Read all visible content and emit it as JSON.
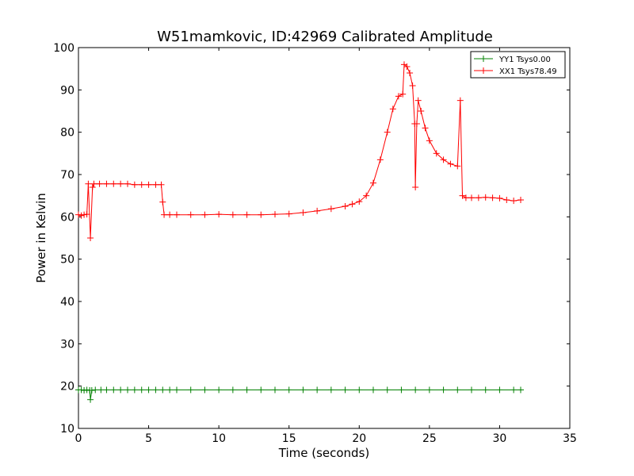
{
  "chart_data": {
    "type": "line",
    "title": "W51mamkovic, ID:42969 Calibrated Amplitude",
    "xlabel": "Time (seconds)",
    "ylabel": "Power in Kelvin",
    "xlim": [
      0,
      35
    ],
    "ylim": [
      10,
      100
    ],
    "xticks": [
      0,
      5,
      10,
      15,
      20,
      25,
      30,
      35
    ],
    "yticks": [
      10,
      20,
      30,
      40,
      50,
      60,
      70,
      80,
      90,
      100
    ],
    "grid": false,
    "legend_position": "top-right",
    "series": [
      {
        "name": "YY1 Tsys0.00",
        "color": "#008000",
        "marker": "+",
        "points": [
          [
            0.0,
            19.1
          ],
          [
            0.2,
            19.1
          ],
          [
            0.4,
            19.0
          ],
          [
            0.6,
            19.1
          ],
          [
            0.8,
            19.0
          ],
          [
            0.85,
            16.8
          ],
          [
            0.95,
            19.0
          ],
          [
            1.2,
            19.1
          ],
          [
            1.6,
            19.1
          ],
          [
            2.0,
            19.1
          ],
          [
            2.5,
            19.1
          ],
          [
            3.0,
            19.1
          ],
          [
            3.5,
            19.1
          ],
          [
            4.0,
            19.1
          ],
          [
            4.5,
            19.1
          ],
          [
            5.0,
            19.1
          ],
          [
            5.5,
            19.1
          ],
          [
            6.0,
            19.1
          ],
          [
            6.5,
            19.1
          ],
          [
            7.0,
            19.1
          ],
          [
            8.0,
            19.1
          ],
          [
            9.0,
            19.1
          ],
          [
            10.0,
            19.1
          ],
          [
            11.0,
            19.1
          ],
          [
            12.0,
            19.1
          ],
          [
            13.0,
            19.1
          ],
          [
            14.0,
            19.1
          ],
          [
            15.0,
            19.1
          ],
          [
            16.0,
            19.1
          ],
          [
            17.0,
            19.1
          ],
          [
            18.0,
            19.1
          ],
          [
            19.0,
            19.1
          ],
          [
            20.0,
            19.1
          ],
          [
            21.0,
            19.1
          ],
          [
            22.0,
            19.1
          ],
          [
            23.0,
            19.1
          ],
          [
            24.0,
            19.1
          ],
          [
            25.0,
            19.1
          ],
          [
            26.0,
            19.1
          ],
          [
            27.0,
            19.1
          ],
          [
            28.0,
            19.1
          ],
          [
            29.0,
            19.1
          ],
          [
            30.0,
            19.1
          ],
          [
            31.0,
            19.1
          ],
          [
            31.5,
            19.1
          ]
        ]
      },
      {
        "name": "XX1 Tsys78.49",
        "color": "#ff0000",
        "marker": "+",
        "points": [
          [
            0.0,
            60.5
          ],
          [
            0.2,
            60.3
          ],
          [
            0.4,
            60.5
          ],
          [
            0.6,
            60.6
          ],
          [
            0.7,
            67.8
          ],
          [
            0.85,
            55.0
          ],
          [
            1.0,
            67.0
          ],
          [
            1.1,
            67.8
          ],
          [
            1.5,
            67.8
          ],
          [
            2.0,
            67.8
          ],
          [
            2.5,
            67.8
          ],
          [
            3.0,
            67.8
          ],
          [
            3.5,
            67.8
          ],
          [
            4.0,
            67.6
          ],
          [
            4.5,
            67.6
          ],
          [
            5.0,
            67.6
          ],
          [
            5.5,
            67.6
          ],
          [
            5.9,
            67.6
          ],
          [
            6.0,
            63.5
          ],
          [
            6.1,
            60.5
          ],
          [
            6.5,
            60.5
          ],
          [
            7.0,
            60.5
          ],
          [
            8.0,
            60.5
          ],
          [
            9.0,
            60.5
          ],
          [
            10.0,
            60.6
          ],
          [
            11.0,
            60.5
          ],
          [
            12.0,
            60.5
          ],
          [
            13.0,
            60.5
          ],
          [
            14.0,
            60.6
          ],
          [
            15.0,
            60.7
          ],
          [
            16.0,
            61.0
          ],
          [
            17.0,
            61.4
          ],
          [
            18.0,
            61.9
          ],
          [
            19.0,
            62.5
          ],
          [
            19.5,
            63.0
          ],
          [
            20.0,
            63.6
          ],
          [
            20.5,
            65.0
          ],
          [
            21.0,
            68.0
          ],
          [
            21.5,
            73.5
          ],
          [
            22.0,
            80.0
          ],
          [
            22.4,
            85.5
          ],
          [
            22.8,
            88.5
          ],
          [
            23.1,
            89.0
          ],
          [
            23.2,
            96.0
          ],
          [
            23.4,
            95.5
          ],
          [
            23.6,
            94.0
          ],
          [
            23.8,
            91.0
          ],
          [
            23.95,
            82.0
          ],
          [
            24.0,
            67.0
          ],
          [
            24.1,
            82.0
          ],
          [
            24.2,
            87.5
          ],
          [
            24.4,
            85.0
          ],
          [
            24.7,
            81.0
          ],
          [
            25.0,
            78.0
          ],
          [
            25.5,
            75.0
          ],
          [
            26.0,
            73.5
          ],
          [
            26.5,
            72.5
          ],
          [
            27.0,
            72.0
          ],
          [
            27.2,
            87.5
          ],
          [
            27.35,
            65.0
          ],
          [
            27.6,
            64.5
          ],
          [
            28.0,
            64.5
          ],
          [
            28.5,
            64.5
          ],
          [
            29.0,
            64.6
          ],
          [
            29.5,
            64.5
          ],
          [
            30.0,
            64.4
          ],
          [
            30.5,
            64.0
          ],
          [
            31.0,
            63.8
          ],
          [
            31.5,
            64.0
          ]
        ]
      }
    ]
  }
}
